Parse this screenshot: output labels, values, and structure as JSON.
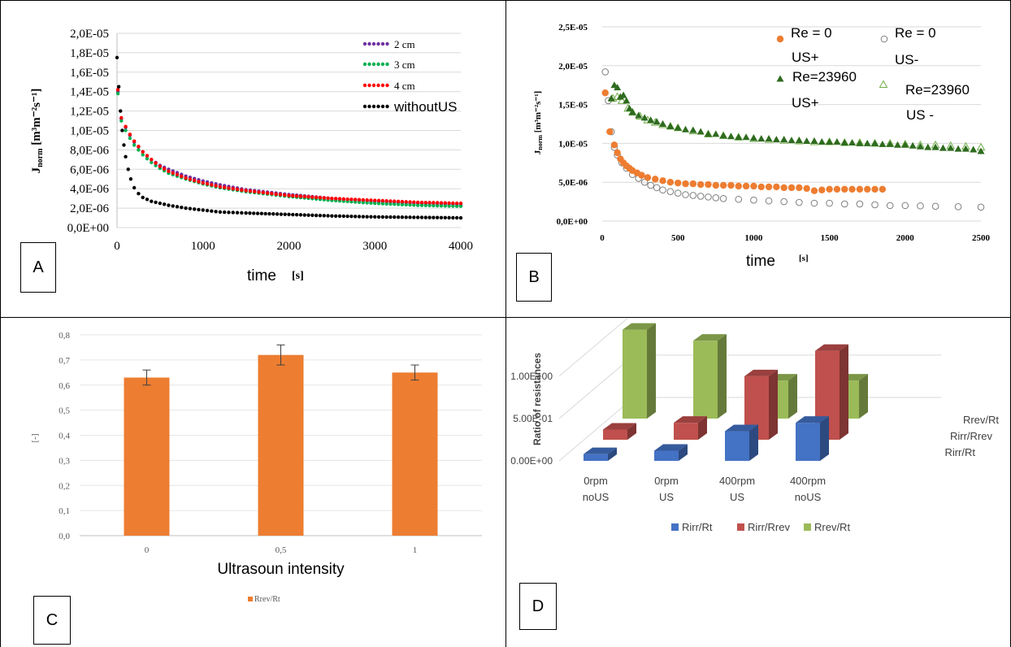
{
  "panels": {
    "A": "A",
    "B": "B",
    "C": "C",
    "D": "D"
  },
  "chart_data": [
    {
      "id": "A",
      "type": "line",
      "ylabel_main": "J",
      "ylabel_sub": "norm",
      "ylabel_unit": "[m³m⁻²s⁻¹]",
      "xlabel": "time",
      "xlabel_unit": "[s]",
      "xlim": [
        0,
        4000
      ],
      "ylim": [
        0,
        2e-05
      ],
      "x_ticks": [
        "0",
        "1000",
        "2000",
        "3000",
        "4000"
      ],
      "y_ticks": [
        "0,0E+00",
        "2,0E-06",
        "4,0E-06",
        "6,0E-06",
        "8,0E-06",
        "1,0E-05",
        "1,2E-05",
        "1,4E-05",
        "1,6E-05",
        "1,8E-05",
        "2,0E-05"
      ],
      "legend_position": "top-right",
      "grid": true,
      "series": [
        {
          "name": "2 cm",
          "color": "#7030a0",
          "x": [
            10,
            50,
            100,
            150,
            200,
            300,
            400,
            500,
            600,
            800,
            1000,
            1200,
            1500,
            1800,
            2000,
            2500,
            3000,
            3500,
            4000
          ],
          "values": [
            1.4e-05,
            1.12e-05,
            1.03e-05,
            9.5e-06,
            8.8e-06,
            7.8e-06,
            7e-06,
            6.4e-06,
            6e-06,
            5.3e-06,
            4.8e-06,
            4.4e-06,
            3.9e-06,
            3.6e-06,
            3.4e-06,
            3e-06,
            2.7e-06,
            2.5e-06,
            2.4e-06
          ]
        },
        {
          "name": "3 cm",
          "color": "#00b050",
          "x": [
            10,
            50,
            100,
            150,
            200,
            300,
            400,
            500,
            600,
            800,
            1000,
            1200,
            1500,
            1800,
            2000,
            2500,
            3000,
            3500,
            4000
          ],
          "values": [
            1.38e-05,
            1.1e-05,
            1e-05,
            9.2e-06,
            8.5e-06,
            7.5e-06,
            6.7e-06,
            6.1e-06,
            5.6e-06,
            5e-06,
            4.5e-06,
            4.1e-06,
            3.7e-06,
            3.4e-06,
            3.2e-06,
            2.8e-06,
            2.5e-06,
            2.3e-06,
            2.2e-06
          ]
        },
        {
          "name": "4 cm",
          "color": "#ff0000",
          "x": [
            10,
            50,
            100,
            150,
            200,
            300,
            400,
            500,
            600,
            800,
            1000,
            1200,
            1500,
            1800,
            2000,
            2500,
            3000,
            3500,
            4000
          ],
          "values": [
            1.42e-05,
            1.13e-05,
            1.04e-05,
            9.6e-06,
            8.9e-06,
            7.8e-06,
            7e-06,
            6.3e-06,
            5.8e-06,
            5.1e-06,
            4.6e-06,
            4.2e-06,
            3.8e-06,
            3.5e-06,
            3.3e-06,
            3e-06,
            2.8e-06,
            2.6e-06,
            2.5e-06
          ]
        },
        {
          "name": "withoutUS",
          "color": "#000000",
          "x": [
            0,
            20,
            40,
            60,
            80,
            100,
            130,
            160,
            200,
            250,
            300,
            400,
            500,
            600,
            800,
            1000,
            1200,
            1500,
            2000,
            2500,
            3000,
            3500,
            4000
          ],
          "values": [
            1.75e-05,
            1.45e-05,
            1.2e-05,
            1e-05,
            8.5e-06,
            7.3e-06,
            6e-06,
            5e-06,
            4.1e-06,
            3.5e-06,
            3.1e-06,
            2.7e-06,
            2.5e-06,
            2.3e-06,
            2e-06,
            1.8e-06,
            1.6e-06,
            1.5e-06,
            1.35e-06,
            1.2e-06,
            1.1e-06,
            1.05e-06,
            1e-06
          ]
        }
      ]
    },
    {
      "id": "B",
      "type": "scatter",
      "ylabel_main": "J",
      "ylabel_sub": "norm",
      "ylabel_unit": "[m³m⁻²s⁻¹]",
      "xlabel": "time",
      "xlabel_unit": "[s]",
      "xlim": [
        0,
        2500
      ],
      "ylim": [
        0,
        2.5e-05
      ],
      "x_ticks": [
        "0",
        "500",
        "1000",
        "1500",
        "2000",
        "2500"
      ],
      "y_ticks": [
        "0,0E+00",
        "5,0E-06",
        "1,0E-05",
        "1,5E-05",
        "2,0E-05",
        "2,5E-05"
      ],
      "legend_position": "top-right",
      "grid": true,
      "series": [
        {
          "name": "Re = 0",
          "name2": "US+",
          "marker": "circle-filled",
          "color": "#ed7d31",
          "x": [
            20,
            50,
            80,
            100,
            120,
            140,
            160,
            180,
            200,
            230,
            260,
            300,
            350,
            400,
            450,
            500,
            550,
            600,
            650,
            700,
            750,
            800,
            850,
            900,
            950,
            1000,
            1050,
            1100,
            1150,
            1200,
            1250,
            1300,
            1350,
            1400,
            1450,
            1500,
            1550,
            1600,
            1650,
            1700,
            1750,
            1800,
            1850
          ],
          "values": [
            1.65e-05,
            1.15e-05,
            9.8e-06,
            8.8e-06,
            8e-06,
            7.5e-06,
            7.1e-06,
            6.8e-06,
            6.5e-06,
            6.2e-06,
            5.9e-06,
            5.6e-06,
            5.4e-06,
            5.2e-06,
            5e-06,
            4.9e-06,
            4.8e-06,
            4.8e-06,
            4.7e-06,
            4.7e-06,
            4.6e-06,
            4.6e-06,
            4.6e-06,
            4.5e-06,
            4.5e-06,
            4.5e-06,
            4.4e-06,
            4.4e-06,
            4.4e-06,
            4.3e-06,
            4.3e-06,
            4.3e-06,
            4.2e-06,
            3.9e-06,
            4e-06,
            4.1e-06,
            4.1e-06,
            4.1e-06,
            4.1e-06,
            4.1e-06,
            4.1e-06,
            4.1e-06,
            4.1e-06
          ]
        },
        {
          "name": "Re = 0",
          "name2": "US-",
          "marker": "circle-open",
          "color": "#7f7f7f",
          "x": [
            20,
            40,
            60,
            80,
            100,
            130,
            160,
            200,
            240,
            280,
            320,
            360,
            400,
            450,
            500,
            550,
            600,
            650,
            700,
            750,
            800,
            900,
            1000,
            1100,
            1200,
            1300,
            1400,
            1500,
            1600,
            1700,
            1800,
            1900,
            2000,
            2100,
            2200,
            2350,
            2500
          ],
          "values": [
            1.92e-05,
            1.55e-05,
            1.15e-05,
            9.5e-06,
            8.5e-06,
            7.5e-06,
            6.8e-06,
            6e-06,
            5.5e-06,
            5e-06,
            4.6e-06,
            4.3e-06,
            4e-06,
            3.8e-06,
            3.6e-06,
            3.4e-06,
            3.3e-06,
            3.2e-06,
            3.1e-06,
            3e-06,
            2.9e-06,
            2.8e-06,
            2.7e-06,
            2.6e-06,
            2.5e-06,
            2.4e-06,
            2.3e-06,
            2.3e-06,
            2.2e-06,
            2.2e-06,
            2.1e-06,
            2e-06,
            2e-06,
            1.95e-06,
            1.9e-06,
            1.85e-06,
            1.8e-06
          ]
        },
        {
          "name": "Re=23960",
          "name2": "US+",
          "marker": "triangle-filled",
          "color": "#2e6b1f",
          "x": [
            60,
            80,
            100,
            120,
            140,
            160,
            180,
            200,
            240,
            280,
            320,
            360,
            400,
            450,
            500,
            550,
            600,
            650,
            700,
            750,
            800,
            850,
            900,
            950,
            1000,
            1050,
            1100,
            1150,
            1200,
            1250,
            1300,
            1350,
            1400,
            1450,
            1500,
            1550,
            1600,
            1650,
            1700,
            1750,
            1800,
            1850,
            1900,
            1950,
            2000,
            2050,
            2100,
            2150,
            2200,
            2250,
            2300,
            2350,
            2400,
            2450,
            2500
          ],
          "values": [
            1.58e-05,
            1.75e-05,
            1.72e-05,
            1.6e-05,
            1.62e-05,
            1.55e-05,
            1.45e-05,
            1.4e-05,
            1.36e-05,
            1.33e-05,
            1.3e-05,
            1.28e-05,
            1.25e-05,
            1.22e-05,
            1.2e-05,
            1.18e-05,
            1.17e-05,
            1.15e-05,
            1.12e-05,
            1.12e-05,
            1.1e-05,
            1.09e-05,
            1.08e-05,
            1.08e-05,
            1.07e-05,
            1.06e-05,
            1.06e-05,
            1.05e-05,
            1.05e-05,
            1.04e-05,
            1.04e-05,
            1.03e-05,
            1.03e-05,
            1.02e-05,
            1.02e-05,
            1.02e-05,
            1.01e-05,
            1.01e-05,
            1e-05,
            1e-05,
            1e-05,
            9.9e-06,
            9.9e-06,
            9.8e-06,
            9.8e-06,
            9.7e-06,
            9.6e-06,
            9.5e-06,
            9.5e-06,
            9.4e-06,
            9.4e-06,
            9.3e-06,
            9.3e-06,
            9.2e-06,
            9e-06
          ]
        },
        {
          "name": "Re=23960",
          "name2": "US -",
          "marker": "triangle-open",
          "color": "#70ad47",
          "x": [
            70,
            100,
            130,
            170,
            200,
            250,
            300,
            350,
            400,
            450,
            500,
            600,
            700,
            800,
            900,
            1000,
            1100,
            1200,
            1300,
            1400,
            1500,
            1600,
            1700,
            1800,
            1900,
            2000,
            2100,
            2200,
            2300,
            2400,
            2500
          ],
          "values": [
            1.58e-05,
            1.6e-05,
            1.55e-05,
            1.45e-05,
            1.4e-05,
            1.35e-05,
            1.3e-05,
            1.27e-05,
            1.24e-05,
            1.22e-05,
            1.2e-05,
            1.16e-05,
            1.12e-05,
            1.1e-05,
            1.08e-05,
            1.06e-05,
            1.05e-05,
            1.04e-05,
            1.03e-05,
            1.02e-05,
            1.02e-05,
            1.01e-05,
            1.01e-05,
            1e-05,
            1e-05,
            9.9e-06,
            9.8e-06,
            9.8e-06,
            9.7e-06,
            9.6e-06,
            9.5e-06
          ]
        }
      ]
    },
    {
      "id": "C",
      "type": "bar",
      "ylabel": "[-]",
      "xlabel": "Ultrasoun intensity",
      "categories": [
        "0",
        "0,5",
        "1"
      ],
      "series": [
        {
          "name": "Rrev/Rt",
          "color": "#ed7d31",
          "values": [
            0.63,
            0.72,
            0.65
          ],
          "errors": [
            0.03,
            0.04,
            0.03
          ]
        }
      ],
      "ylim": [
        0,
        0.8
      ],
      "y_ticks": [
        "0,0",
        "0,1",
        "0,2",
        "0,3",
        "0,4",
        "0,5",
        "0,6",
        "0,7",
        "0,8"
      ],
      "legend_position": "bottom",
      "grid": true
    },
    {
      "id": "D",
      "type": "bar",
      "ylabel": "Ratio of resistances",
      "categories": [
        "0rpm\nnoUS",
        "0rpm\nUS",
        "400rpm\nUS",
        "400rpm\nnoUS"
      ],
      "category_lines": [
        [
          "0rpm",
          "noUS"
        ],
        [
          "0rpm",
          "US"
        ],
        [
          "400rpm",
          "US"
        ],
        [
          "400rpm",
          "noUS"
        ]
      ],
      "depth_labels": [
        "Rrev/Rt",
        "Rirr/Rrev",
        "Rirr/Rt"
      ],
      "y_ticks": [
        "0.00E+00",
        "5.00E-01",
        "1.00E+00"
      ],
      "ylim": [
        0,
        1.2
      ],
      "legend_position": "bottom",
      "grid": true,
      "series": [
        {
          "name": "Rirr/Rt",
          "color": "#4472c4",
          "values": [
            0.08,
            0.12,
            0.35,
            0.45
          ]
        },
        {
          "name": "Rirr/Rrev",
          "color": "#c0504d",
          "values": [
            0.12,
            0.2,
            0.75,
            1.05
          ]
        },
        {
          "name": "Rrev/Rt",
          "color": "#9bbb59",
          "values": [
            1.05,
            0.92,
            0.45,
            0.45
          ]
        }
      ]
    }
  ]
}
